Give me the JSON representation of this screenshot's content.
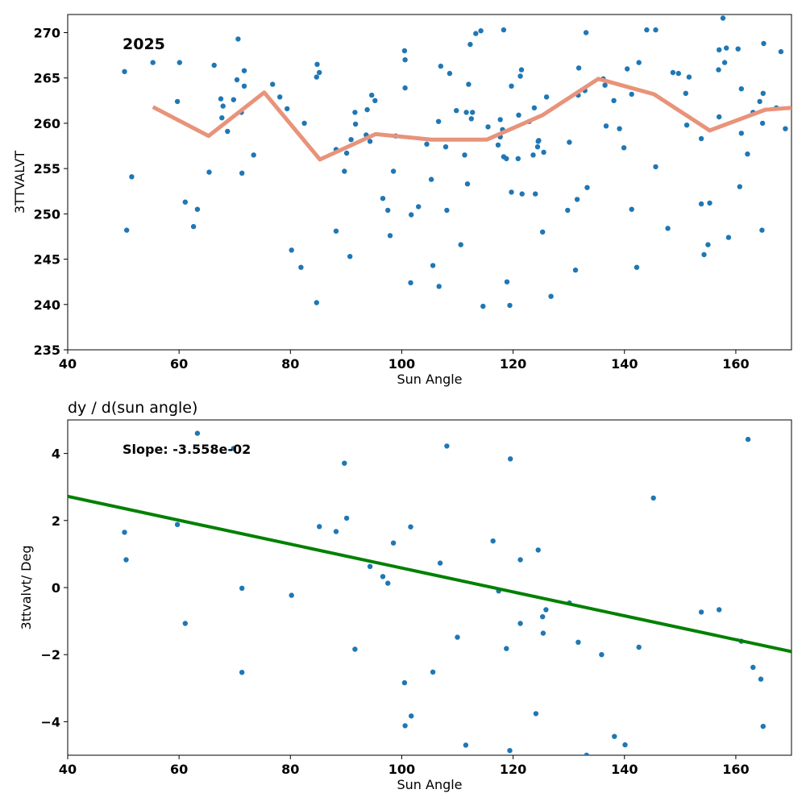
{
  "chart_data": [
    {
      "type": "scatter",
      "annotation": "2025",
      "xlabel": "Sun Angle",
      "ylabel": "3TTVALVT",
      "xlim": [
        40,
        170
      ],
      "ylim": [
        235,
        272
      ],
      "xticks": [
        40,
        60,
        80,
        100,
        120,
        140,
        160
      ],
      "yticks": [
        235,
        240,
        245,
        250,
        255,
        260,
        265,
        270
      ],
      "point_color": "#1f77b4",
      "line_color": "#e8937a",
      "points": [
        [
          50.2,
          265.7
        ],
        [
          50.6,
          248.2
        ],
        [
          51.5,
          254.1
        ],
        [
          55.3,
          266.7
        ],
        [
          60.1,
          266.7
        ],
        [
          59.7,
          262.4
        ],
        [
          61.1,
          251.3
        ],
        [
          62.6,
          248.6
        ],
        [
          63.3,
          250.5
        ],
        [
          65.4,
          254.6
        ],
        [
          66.3,
          266.4
        ],
        [
          67.5,
          262.7
        ],
        [
          67.7,
          260.6
        ],
        [
          67.9,
          261.9
        ],
        [
          68.7,
          259.1
        ],
        [
          69.8,
          262.6
        ],
        [
          70.4,
          264.8
        ],
        [
          70.6,
          269.3
        ],
        [
          71.2,
          261.2
        ],
        [
          71.3,
          254.5
        ],
        [
          71.7,
          265.8
        ],
        [
          71.7,
          264.1
        ],
        [
          73.4,
          256.5
        ],
        [
          76.8,
          264.3
        ],
        [
          78.1,
          262.9
        ],
        [
          79.4,
          261.6
        ],
        [
          80.2,
          246.0
        ],
        [
          81.9,
          244.1
        ],
        [
          82.5,
          260.0
        ],
        [
          84.7,
          265.1
        ],
        [
          84.7,
          240.2
        ],
        [
          84.8,
          266.5
        ],
        [
          85.2,
          265.6
        ],
        [
          88.2,
          257.1
        ],
        [
          88.2,
          248.1
        ],
        [
          89.7,
          254.7
        ],
        [
          90.1,
          256.7
        ],
        [
          90.7,
          245.3
        ],
        [
          90.9,
          258.2
        ],
        [
          91.6,
          261.2
        ],
        [
          91.7,
          259.9
        ],
        [
          93.6,
          258.7
        ],
        [
          93.8,
          261.5
        ],
        [
          94.3,
          258.0
        ],
        [
          94.6,
          263.1
        ],
        [
          95.2,
          262.5
        ],
        [
          96.6,
          251.7
        ],
        [
          97.5,
          250.4
        ],
        [
          97.9,
          247.6
        ],
        [
          98.5,
          254.7
        ],
        [
          98.9,
          258.6
        ],
        [
          100.5,
          268.0
        ],
        [
          100.6,
          267.0
        ],
        [
          100.6,
          263.9
        ],
        [
          101.7,
          249.9
        ],
        [
          101.6,
          242.4
        ],
        [
          103.0,
          250.8
        ],
        [
          104.5,
          257.7
        ],
        [
          105.3,
          253.8
        ],
        [
          105.6,
          244.3
        ],
        [
          106.6,
          260.2
        ],
        [
          106.7,
          242.0
        ],
        [
          107.0,
          266.3
        ],
        [
          107.9,
          257.4
        ],
        [
          108.1,
          250.4
        ],
        [
          108.6,
          265.5
        ],
        [
          109.8,
          261.4
        ],
        [
          110.6,
          246.6
        ],
        [
          111.3,
          256.5
        ],
        [
          111.6,
          261.2
        ],
        [
          111.8,
          253.3
        ],
        [
          112.0,
          264.3
        ],
        [
          112.3,
          268.7
        ],
        [
          112.5,
          260.5
        ],
        [
          112.7,
          261.2
        ],
        [
          113.3,
          269.9
        ],
        [
          114.2,
          270.2
        ],
        [
          114.6,
          239.8
        ],
        [
          115.5,
          259.6
        ],
        [
          117.3,
          257.6
        ],
        [
          117.7,
          258.5
        ],
        [
          117.7,
          260.4
        ],
        [
          118.1,
          259.3
        ],
        [
          118.3,
          270.3
        ],
        [
          118.3,
          256.3
        ],
        [
          118.8,
          256.1
        ],
        [
          118.9,
          242.5
        ],
        [
          119.4,
          239.9
        ],
        [
          119.7,
          252.4
        ],
        [
          119.7,
          264.1
        ],
        [
          120.9,
          256.1
        ],
        [
          121.0,
          260.9
        ],
        [
          121.3,
          265.2
        ],
        [
          121.5,
          265.9
        ],
        [
          121.6,
          252.2
        ],
        [
          122.9,
          260.2
        ],
        [
          123.6,
          256.5
        ],
        [
          123.8,
          261.7
        ],
        [
          124.0,
          252.2
        ],
        [
          124.4,
          257.4
        ],
        [
          124.5,
          258.0
        ],
        [
          124.6,
          258.1
        ],
        [
          125.3,
          248.0
        ],
        [
          125.5,
          256.8
        ],
        [
          126.0,
          262.9
        ],
        [
          126.8,
          240.9
        ],
        [
          129.8,
          250.4
        ],
        [
          130.1,
          257.9
        ],
        [
          131.2,
          243.8
        ],
        [
          131.5,
          251.6
        ],
        [
          131.7,
          263.1
        ],
        [
          131.8,
          266.1
        ],
        [
          132.9,
          263.6
        ],
        [
          133.1,
          270.0
        ],
        [
          133.3,
          252.9
        ],
        [
          136.2,
          264.9
        ],
        [
          136.5,
          264.2
        ],
        [
          136.7,
          259.7
        ],
        [
          138.1,
          262.5
        ],
        [
          139.1,
          259.4
        ],
        [
          139.9,
          257.3
        ],
        [
          140.5,
          266.0
        ],
        [
          141.3,
          263.2
        ],
        [
          141.3,
          250.5
        ],
        [
          142.2,
          244.1
        ],
        [
          142.6,
          266.7
        ],
        [
          144.0,
          270.3
        ],
        [
          145.6,
          270.3
        ],
        [
          145.6,
          255.2
        ],
        [
          147.8,
          248.4
        ],
        [
          148.7,
          265.6
        ],
        [
          149.7,
          265.5
        ],
        [
          151.0,
          263.3
        ],
        [
          151.2,
          259.8
        ],
        [
          151.6,
          265.1
        ],
        [
          153.8,
          258.3
        ],
        [
          153.8,
          251.1
        ],
        [
          154.3,
          245.5
        ],
        [
          155.0,
          246.6
        ],
        [
          155.3,
          251.2
        ],
        [
          156.9,
          265.9
        ],
        [
          157.0,
          260.7
        ],
        [
          157.0,
          268.1
        ],
        [
          157.7,
          271.6
        ],
        [
          158.0,
          266.7
        ],
        [
          158.3,
          268.3
        ],
        [
          158.7,
          247.4
        ],
        [
          160.4,
          268.2
        ],
        [
          160.7,
          253.0
        ],
        [
          161.0,
          258.9
        ],
        [
          161.0,
          263.8
        ],
        [
          162.1,
          256.6
        ],
        [
          163.1,
          261.2
        ],
        [
          164.3,
          262.4
        ],
        [
          164.7,
          248.2
        ],
        [
          164.8,
          260.0
        ],
        [
          164.9,
          263.3
        ],
        [
          165.0,
          268.8
        ],
        [
          167.3,
          261.7
        ],
        [
          168.1,
          267.9
        ],
        [
          168.9,
          259.4
        ]
      ],
      "line_points": [
        [
          55.3,
          261.8
        ],
        [
          65.3,
          258.6
        ],
        [
          75.3,
          263.4
        ],
        [
          85.3,
          256.0
        ],
        [
          95.3,
          258.8
        ],
        [
          105.3,
          258.2
        ],
        [
          115.3,
          258.2
        ],
        [
          125.3,
          260.9
        ],
        [
          135.3,
          264.9
        ],
        [
          145.3,
          263.2
        ],
        [
          155.3,
          259.2
        ],
        [
          165.3,
          261.5
        ],
        [
          170,
          261.7
        ]
      ]
    },
    {
      "type": "scatter",
      "title": "dy / d(sun angle)",
      "annotation": "Slope: -3.558e-02",
      "xlabel": "Sun Angle",
      "ylabel": "3ttvalvt/ Deg",
      "xlim": [
        40,
        170
      ],
      "ylim": [
        -5,
        5
      ],
      "xticks": [
        40,
        60,
        80,
        100,
        120,
        140,
        160
      ],
      "yticks": [
        -4,
        -2,
        0,
        2,
        4
      ],
      "point_color": "#1f77b4",
      "line_color": "#008000",
      "points": [
        [
          50.2,
          1.65
        ],
        [
          50.5,
          0.83
        ],
        [
          59.7,
          1.88
        ],
        [
          61.1,
          -1.07
        ],
        [
          63.3,
          4.6
        ],
        [
          69.8,
          4.15
        ],
        [
          71.3,
          -0.02
        ],
        [
          71.3,
          -2.53
        ],
        [
          80.2,
          -0.23
        ],
        [
          85.2,
          1.82
        ],
        [
          88.2,
          1.67
        ],
        [
          89.7,
          3.71
        ],
        [
          90.1,
          2.07
        ],
        [
          91.6,
          -1.84
        ],
        [
          94.3,
          0.63
        ],
        [
          96.6,
          0.33
        ],
        [
          97.5,
          0.13
        ],
        [
          98.5,
          1.33
        ],
        [
          100.5,
          -2.84
        ],
        [
          100.6,
          -4.12
        ],
        [
          101.6,
          1.81
        ],
        [
          101.7,
          -3.83
        ],
        [
          105.6,
          -2.52
        ],
        [
          106.9,
          0.73
        ],
        [
          108.1,
          4.22
        ],
        [
          110.0,
          -1.48
        ],
        [
          111.5,
          -4.7
        ],
        [
          116.4,
          1.39
        ],
        [
          117.4,
          -0.1
        ],
        [
          118.8,
          -1.82
        ],
        [
          119.5,
          3.84
        ],
        [
          119.4,
          -4.86
        ],
        [
          121.3,
          0.83
        ],
        [
          121.3,
          -1.07
        ],
        [
          124.1,
          -3.76
        ],
        [
          124.5,
          1.12
        ],
        [
          125.3,
          -0.87
        ],
        [
          125.4,
          -1.36
        ],
        [
          125.9,
          -0.66
        ],
        [
          130.1,
          -0.46
        ],
        [
          131.7,
          -1.63
        ],
        [
          133.2,
          -5.0
        ],
        [
          135.9,
          -2.0
        ],
        [
          138.2,
          -4.44
        ],
        [
          140.1,
          -4.69
        ],
        [
          142.6,
          -1.78
        ],
        [
          145.2,
          2.67
        ],
        [
          153.8,
          -0.73
        ],
        [
          157.0,
          -0.66
        ],
        [
          161.0,
          -1.6
        ],
        [
          162.2,
          4.42
        ],
        [
          163.1,
          -2.38
        ],
        [
          164.5,
          -2.73
        ],
        [
          164.9,
          -4.14
        ]
      ],
      "fit_line": [
        [
          40,
          2.72
        ],
        [
          170,
          -1.91
        ]
      ]
    }
  ]
}
